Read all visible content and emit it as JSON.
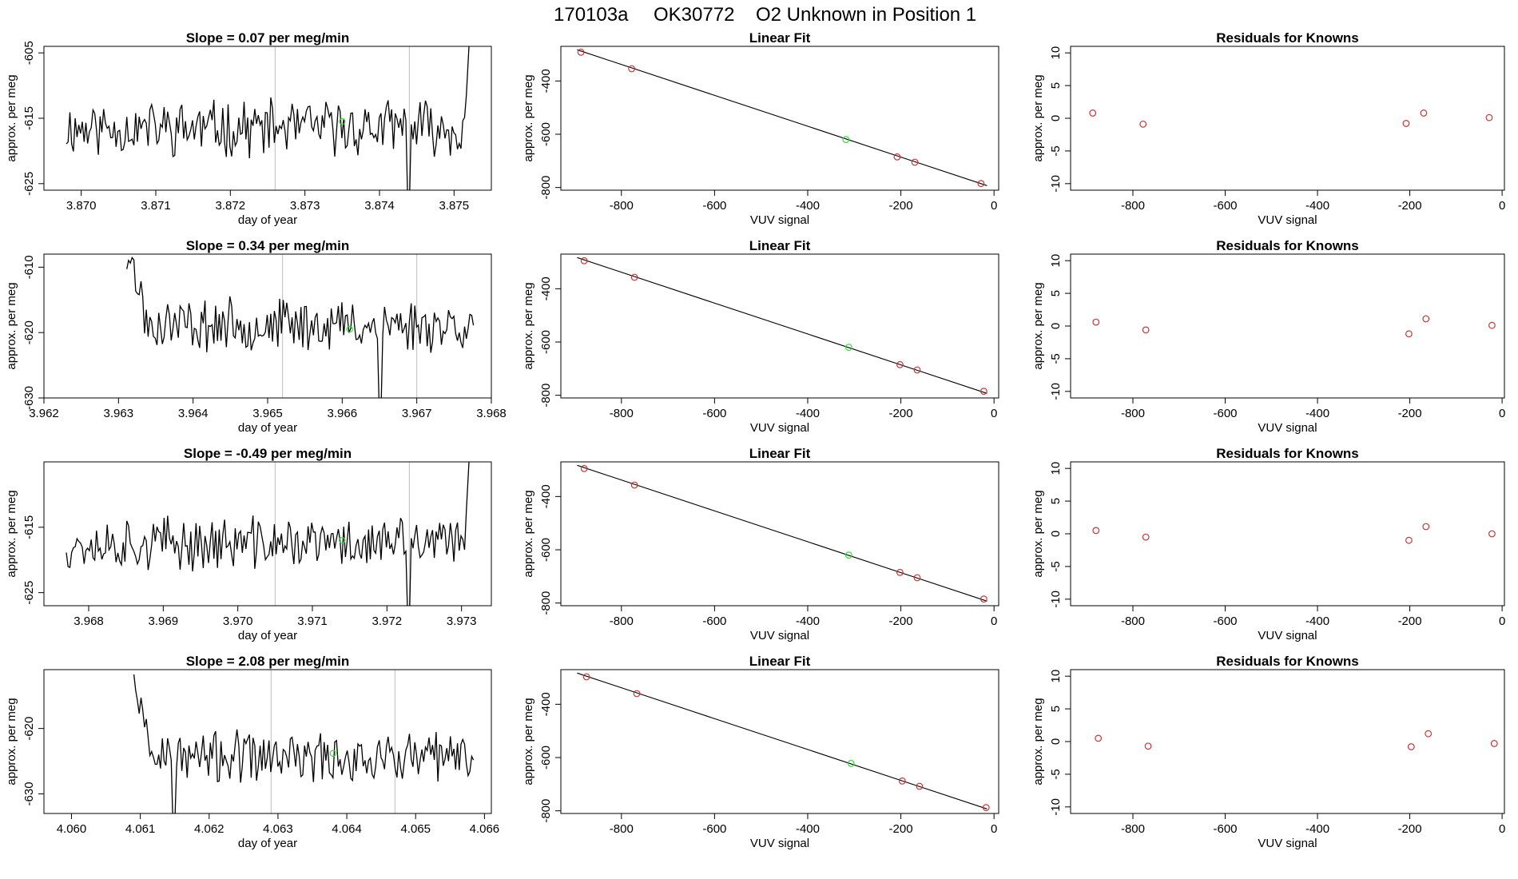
{
  "header": {
    "run_id": "170103a",
    "tank_id": "OK30772",
    "description": "O2 Unknown in Position  1"
  },
  "colors": {
    "line": "#000000",
    "axis": "#000000",
    "vline": "#bebebe",
    "known_point": "#cd3333",
    "unknown_point": "#33dd33"
  },
  "rows": [
    {
      "time_panel": {
        "title": "Slope =  0.07  per meg/min",
        "xlabel": "day of year",
        "ylabel": "approx. per meg",
        "xlim": [
          3.8695,
          3.8755
        ],
        "ylim": [
          -626,
          -604
        ],
        "xticks": [
          "3.870",
          "3.871",
          "3.872",
          "3.873",
          "3.874",
          "3.875"
        ],
        "yticks": [
          "-605",
          "-615",
          "-625"
        ],
        "vlines": [
          3.8726,
          3.8744
        ],
        "base_level": -616.5,
        "noise": 3.6,
        "high_start": null,
        "rise_end": true,
        "dip_at": 3.8744,
        "unknown_point": {
          "x": 3.8735,
          "y": -615.5
        },
        "seed": 11
      },
      "fit_panel": {
        "title": "Linear Fit",
        "xlabel": "VUV signal",
        "ylabel": "approx. per meg",
        "xlim": [
          -930,
          10
        ],
        "ylim": [
          -810,
          -270
        ],
        "xticks": [
          "-800",
          "-600",
          "-400",
          "-200",
          "0"
        ],
        "yticks": [
          "-400",
          "-600",
          "-800"
        ],
        "fit_line": {
          "x": [
            -895,
            -15
          ],
          "y": [
            -283,
            -793
          ]
        },
        "knowns": [
          {
            "x": -887,
            "y": -292
          },
          {
            "x": -778,
            "y": -354
          },
          {
            "x": -208,
            "y": -685
          },
          {
            "x": -170,
            "y": -705
          },
          {
            "x": -28,
            "y": -785
          }
        ],
        "unknown": {
          "x": -318,
          "y": -620
        }
      },
      "resid_panel": {
        "title": "Residuals for Knowns",
        "xlabel": "VUV signal",
        "ylabel": "approx. per meg",
        "xlim": [
          -935,
          5
        ],
        "ylim": [
          -11,
          11
        ],
        "xticks": [
          "-800",
          "-600",
          "-400",
          "-200",
          "0"
        ],
        "yticks": [
          "10",
          "5",
          "0",
          "-5",
          "-10"
        ],
        "points": [
          {
            "x": -887,
            "y": 0.8
          },
          {
            "x": -778,
            "y": -0.9
          },
          {
            "x": -208,
            "y": -0.8
          },
          {
            "x": -170,
            "y": 0.8
          },
          {
            "x": -28,
            "y": 0.1
          }
        ]
      }
    },
    {
      "time_panel": {
        "title": "Slope =  0.34  per meg/min",
        "xlabel": "day of year",
        "ylabel": "approx. per meg",
        "xlim": [
          3.962,
          3.968
        ],
        "ylim": [
          -630,
          -608
        ],
        "xticks": [
          "3.962",
          "3.963",
          "3.964",
          "3.965",
          "3.966",
          "3.967",
          "3.968"
        ],
        "yticks": [
          "-610",
          "-620",
          "-630"
        ],
        "vlines": [
          3.9652,
          3.967
        ],
        "base_level": -618.8,
        "noise": 3.3,
        "high_start": 3.9631,
        "rise_end": false,
        "dip_at": 3.9665,
        "unknown_point": {
          "x": 3.9661,
          "y": -619.5
        },
        "seed": 23
      },
      "fit_panel": {
        "title": "Linear Fit",
        "xlabel": "VUV signal",
        "ylabel": "approx. per meg",
        "xlim": [
          -930,
          10
        ],
        "ylim": [
          -810,
          -270
        ],
        "xticks": [
          "-800",
          "-600",
          "-400",
          "-200",
          "0"
        ],
        "yticks": [
          "-400",
          "-600",
          "-800"
        ],
        "fit_line": {
          "x": [
            -895,
            -15
          ],
          "y": [
            -283,
            -793
          ]
        },
        "knowns": [
          {
            "x": -880,
            "y": -295
          },
          {
            "x": -772,
            "y": -357
          },
          {
            "x": -202,
            "y": -685
          },
          {
            "x": -165,
            "y": -705
          },
          {
            "x": -22,
            "y": -785
          }
        ],
        "unknown": {
          "x": -312,
          "y": -620
        }
      },
      "resid_panel": {
        "title": "Residuals for Knowns",
        "xlabel": "VUV signal",
        "ylabel": "approx. per meg",
        "xlim": [
          -935,
          5
        ],
        "ylim": [
          -11,
          11
        ],
        "xticks": [
          "-800",
          "-600",
          "-400",
          "-200",
          "0"
        ],
        "yticks": [
          "10",
          "5",
          "0",
          "-5",
          "-10"
        ],
        "points": [
          {
            "x": -880,
            "y": 0.6
          },
          {
            "x": -772,
            "y": -0.6
          },
          {
            "x": -202,
            "y": -1.2
          },
          {
            "x": -165,
            "y": 1.1
          },
          {
            "x": -22,
            "y": 0.1
          }
        ]
      }
    },
    {
      "time_panel": {
        "title": "Slope =  -0.49  per meg/min",
        "xlabel": "day of year",
        "ylabel": "approx. per meg",
        "xlim": [
          3.9674,
          3.9734
        ],
        "ylim": [
          -627,
          -605
        ],
        "xticks": [
          "3.968",
          "3.969",
          "3.970",
          "3.971",
          "3.972",
          "3.973"
        ],
        "yticks": [
          "-615",
          "-625"
        ],
        "vlines": [
          3.9705,
          3.9723
        ],
        "base_level": -617.5,
        "noise": 3.4,
        "high_start": null,
        "rise_end": true,
        "dip_at": 3.9723,
        "unknown_point": {
          "x": 3.9714,
          "y": -617.0
        },
        "seed": 37
      },
      "fit_panel": {
        "title": "Linear Fit",
        "xlabel": "VUV signal",
        "ylabel": "approx. per meg",
        "xlim": [
          -930,
          10
        ],
        "ylim": [
          -810,
          -270
        ],
        "xticks": [
          "-800",
          "-600",
          "-400",
          "-200",
          "0"
        ],
        "yticks": [
          "-400",
          "-600",
          "-800"
        ],
        "fit_line": {
          "x": [
            -895,
            -15
          ],
          "y": [
            -283,
            -793
          ]
        },
        "knowns": [
          {
            "x": -880,
            "y": -295
          },
          {
            "x": -772,
            "y": -357
          },
          {
            "x": -202,
            "y": -685
          },
          {
            "x": -165,
            "y": -705
          },
          {
            "x": -22,
            "y": -785
          }
        ],
        "unknown": {
          "x": -312,
          "y": -620
        }
      },
      "resid_panel": {
        "title": "Residuals for Knowns",
        "xlabel": "VUV signal",
        "ylabel": "approx. per meg",
        "xlim": [
          -935,
          5
        ],
        "ylim": [
          -11,
          11
        ],
        "xticks": [
          "-800",
          "-600",
          "-400",
          "-200",
          "0"
        ],
        "yticks": [
          "10",
          "5",
          "0",
          "-5",
          "-10"
        ],
        "points": [
          {
            "x": -880,
            "y": 0.5
          },
          {
            "x": -772,
            "y": -0.5
          },
          {
            "x": -202,
            "y": -1.0
          },
          {
            "x": -165,
            "y": 1.1
          },
          {
            "x": -22,
            "y": 0.0
          }
        ]
      }
    },
    {
      "time_panel": {
        "title": "Slope =  2.08  per meg/min",
        "xlabel": "day of year",
        "ylabel": "approx. per meg",
        "xlim": [
          4.0596,
          4.0661
        ],
        "ylim": [
          -633,
          -611
        ],
        "xticks": [
          "4.060",
          "4.061",
          "4.062",
          "4.063",
          "4.064",
          "4.065",
          "4.066"
        ],
        "yticks": [
          "-620",
          "-630"
        ],
        "vlines": [
          4.0629,
          4.0647
        ],
        "base_level": -624.5,
        "noise": 3.3,
        "high_start": 4.0609,
        "rise_end": false,
        "dip_at": 4.0615,
        "unknown_point": {
          "x": 4.0638,
          "y": -623.8
        },
        "seed": 53
      },
      "fit_panel": {
        "title": "Linear Fit",
        "xlabel": "VUV signal",
        "ylabel": "approx. per meg",
        "xlim": [
          -930,
          10
        ],
        "ylim": [
          -810,
          -270
        ],
        "xticks": [
          "-800",
          "-600",
          "-400",
          "-200",
          "0"
        ],
        "yticks": [
          "-400",
          "-600",
          "-800"
        ],
        "fit_line": {
          "x": [
            -895,
            -15
          ],
          "y": [
            -283,
            -793
          ]
        },
        "knowns": [
          {
            "x": -875,
            "y": -297
          },
          {
            "x": -767,
            "y": -360
          },
          {
            "x": -197,
            "y": -688
          },
          {
            "x": -160,
            "y": -708
          },
          {
            "x": -17,
            "y": -788
          }
        ],
        "unknown": {
          "x": -307,
          "y": -622
        }
      },
      "resid_panel": {
        "title": "Residuals for Knowns",
        "xlabel": "VUV signal",
        "ylabel": "approx. per meg",
        "xlim": [
          -935,
          5
        ],
        "ylim": [
          -11,
          11
        ],
        "xticks": [
          "-800",
          "-600",
          "-400",
          "-200",
          "0"
        ],
        "yticks": [
          "10",
          "5",
          "0",
          "-5",
          "-10"
        ],
        "points": [
          {
            "x": -875,
            "y": 0.5
          },
          {
            "x": -767,
            "y": -0.7
          },
          {
            "x": -197,
            "y": -0.8
          },
          {
            "x": -160,
            "y": 1.2
          },
          {
            "x": -17,
            "y": -0.3
          }
        ]
      }
    }
  ],
  "chart_data": [
    {
      "type": "line",
      "title": "Slope =  0.07  per meg/min",
      "xlabel": "day of year",
      "ylabel": "approx. per meg",
      "xlim": [
        3.8695,
        3.8755
      ],
      "ylim": [
        -626,
        -604
      ]
    },
    {
      "type": "scatter",
      "title": "Linear Fit",
      "xlabel": "VUV signal",
      "ylabel": "approx. per meg",
      "x": [
        -887,
        -778,
        -208,
        -170,
        -28
      ],
      "y": [
        -292,
        -354,
        -685,
        -705,
        -785
      ]
    },
    {
      "type": "scatter",
      "title": "Residuals for Knowns",
      "xlabel": "VUV signal",
      "ylabel": "approx. per meg",
      "x": [
        -887,
        -778,
        -208,
        -170,
        -28
      ],
      "y": [
        0.8,
        -0.9,
        -0.8,
        0.8,
        0.1
      ]
    },
    {
      "type": "line",
      "title": "Slope =  0.34  per meg/min",
      "xlabel": "day of year",
      "ylabel": "approx. per meg",
      "xlim": [
        3.962,
        3.968
      ],
      "ylim": [
        -630,
        -608
      ]
    },
    {
      "type": "scatter",
      "title": "Linear Fit",
      "xlabel": "VUV signal",
      "ylabel": "approx. per meg",
      "x": [
        -880,
        -772,
        -202,
        -165,
        -22
      ],
      "y": [
        -295,
        -357,
        -685,
        -705,
        -785
      ]
    },
    {
      "type": "scatter",
      "title": "Residuals for Knowns",
      "xlabel": "VUV signal",
      "ylabel": "approx. per meg",
      "x": [
        -880,
        -772,
        -202,
        -165,
        -22
      ],
      "y": [
        0.6,
        -0.6,
        -1.2,
        1.1,
        0.1
      ]
    },
    {
      "type": "line",
      "title": "Slope =  -0.49  per meg/min",
      "xlabel": "day of year",
      "ylabel": "approx. per meg",
      "xlim": [
        3.9674,
        3.9734
      ],
      "ylim": [
        -627,
        -605
      ]
    },
    {
      "type": "scatter",
      "title": "Linear Fit",
      "xlabel": "VUV signal",
      "ylabel": "approx. per meg",
      "x": [
        -880,
        -772,
        -202,
        -165,
        -22
      ],
      "y": [
        -295,
        -357,
        -685,
        -705,
        -785
      ]
    },
    {
      "type": "scatter",
      "title": "Residuals for Knowns",
      "xlabel": "VUV signal",
      "ylabel": "approx. per meg",
      "x": [
        -880,
        -772,
        -202,
        -165,
        -22
      ],
      "y": [
        0.5,
        -0.5,
        -1.0,
        1.1,
        0.0
      ]
    },
    {
      "type": "line",
      "title": "Slope =  2.08  per meg/min",
      "xlabel": "day of year",
      "ylabel": "approx. per meg",
      "xlim": [
        4.0596,
        4.0661
      ],
      "ylim": [
        -633,
        -611
      ]
    },
    {
      "type": "scatter",
      "title": "Linear Fit",
      "xlabel": "VUV signal",
      "ylabel": "approx. per meg",
      "x": [
        -875,
        -767,
        -197,
        -160,
        -17
      ],
      "y": [
        -297,
        -360,
        -688,
        -708,
        -788
      ]
    },
    {
      "type": "scatter",
      "title": "Residuals for Knowns",
      "xlabel": "VUV signal",
      "ylabel": "approx. per meg",
      "x": [
        -875,
        -767,
        -197,
        -160,
        -17
      ],
      "y": [
        0.5,
        -0.7,
        -0.8,
        1.2,
        -0.3
      ]
    }
  ]
}
